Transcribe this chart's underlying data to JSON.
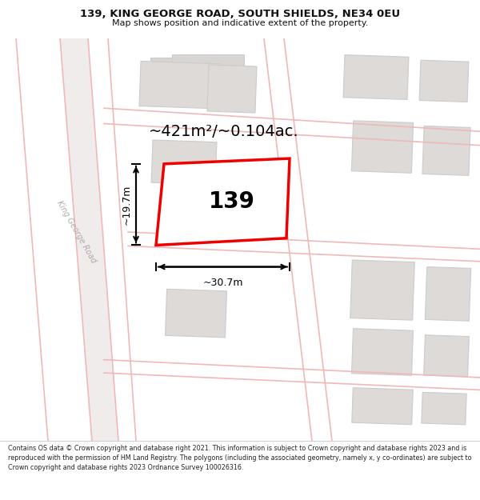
{
  "title_line1": "139, KING GEORGE ROAD, SOUTH SHIELDS, NE34 0EU",
  "title_line2": "Map shows position and indicative extent of the property.",
  "footer_text": "Contains OS data © Crown copyright and database right 2021. This information is subject to Crown copyright and database rights 2023 and is reproduced with the permission of HM Land Registry. The polygons (including the associated geometry, namely x, y co-ordinates) are subject to Crown copyright and database rights 2023 Ordnance Survey 100026316.",
  "area_label": "~421m²/~0.104ac.",
  "width_label": "~30.7m",
  "height_label": "~19.7m",
  "plot_number": "139",
  "map_bg": "#f7f4f2",
  "road_line_color": "#f0b8b8",
  "road_center_color": "#e8e0e0",
  "building_fill": "#d8d5d3",
  "building_edge": "#cccccc",
  "plot_fill": "#ffffff",
  "plot_edge": "#ee0000",
  "dim_color": "#111111",
  "title_color": "#111111",
  "footer_color": "#222222",
  "road_label_color": "#aaaaaa",
  "title_fontsize": 9.5,
  "subtitle_fontsize": 8.0,
  "footer_fontsize": 5.8,
  "area_fontsize": 14,
  "number_fontsize": 20,
  "dim_fontsize": 9
}
